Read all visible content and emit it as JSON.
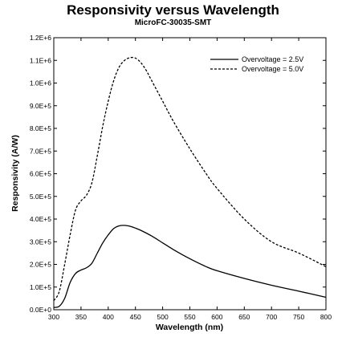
{
  "chart_data": {
    "type": "line",
    "title": "Responsivity versus Wavelength",
    "subtitle": "MicroFC-30035-SMT",
    "xlabel": "Wavelength (nm)",
    "ylabel": "Responsivity  (A/W)",
    "xlim": [
      300,
      800
    ],
    "ylim": [
      0,
      1200000
    ],
    "x_ticks": [
      "300",
      "350",
      "400",
      "450",
      "500",
      "550",
      "600",
      "650",
      "700",
      "750",
      "800"
    ],
    "y_ticks": [
      "0.0E+0",
      "1.0E+5",
      "2.0E+5",
      "3.0E+5",
      "4.0E+5",
      "5.0E+5",
      "6.0E+5",
      "7.0E+5",
      "8.0E+5",
      "9.0E+5",
      "1.0E+6",
      "1.1E+6",
      "1.2E+6"
    ],
    "grid": false,
    "legend_position": "top-right",
    "series": [
      {
        "name": "Overvoltage = 2.5V",
        "style": "solid",
        "color": "#000000",
        "x": [
          300,
          310,
          320,
          330,
          340,
          350,
          360,
          370,
          380,
          390,
          400,
          410,
          420,
          430,
          440,
          450,
          460,
          480,
          500,
          520,
          550,
          580,
          600,
          650,
          700,
          750,
          800
        ],
        "y": [
          10000,
          15000,
          50000,
          120000,
          160000,
          175000,
          185000,
          205000,
          250000,
          295000,
          330000,
          358000,
          370000,
          372000,
          368000,
          360000,
          350000,
          325000,
          295000,
          265000,
          225000,
          190000,
          172000,
          138000,
          108000,
          82000,
          55000
        ]
      },
      {
        "name": "Overvoltage = 5.0V",
        "style": "dashed",
        "color": "#000000",
        "x": [
          300,
          310,
          320,
          330,
          340,
          350,
          360,
          370,
          380,
          390,
          400,
          410,
          420,
          430,
          440,
          450,
          460,
          470,
          480,
          500,
          520,
          550,
          580,
          600,
          650,
          700,
          750,
          800
        ],
        "y": [
          40000,
          80000,
          200000,
          330000,
          440000,
          480000,
          505000,
          560000,
          680000,
          810000,
          920000,
          1010000,
          1070000,
          1100000,
          1112000,
          1110000,
          1090000,
          1055000,
          1010000,
          920000,
          830000,
          710000,
          600000,
          535000,
          400000,
          300000,
          250000,
          190000
        ]
      }
    ]
  }
}
